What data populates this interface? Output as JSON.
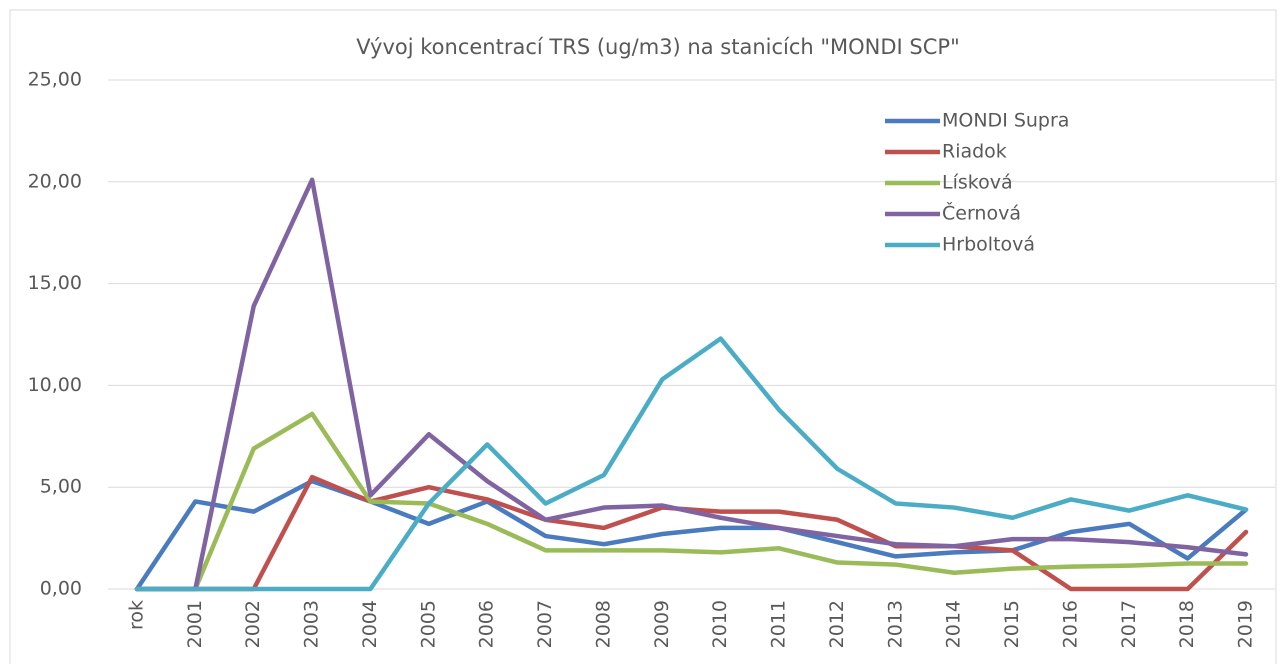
{
  "chart_data": {
    "type": "line",
    "title": "Vývoj koncentrací TRS (ug/m3) na stanicích \"MONDI SCP\"",
    "categories": [
      "rok",
      "2001",
      "2002",
      "2003",
      "2004",
      "2005",
      "2006",
      "2007",
      "2008",
      "2009",
      "2010",
      "2011",
      "2012",
      "2013",
      "2014",
      "2015",
      "2016",
      "2017",
      "2018",
      "2019"
    ],
    "series": [
      {
        "name": "MONDI Supra",
        "color": "#4a7bbf",
        "values": [
          0,
          4.3,
          3.8,
          5.3,
          4.3,
          3.2,
          4.3,
          2.6,
          2.2,
          2.7,
          3.0,
          3.0,
          2.3,
          1.6,
          1.8,
          1.9,
          2.8,
          3.2,
          1.5,
          3.9
        ]
      },
      {
        "name": "Riadok",
        "color": "#c0504d",
        "values": [
          0,
          0,
          0,
          5.5,
          4.3,
          5.0,
          4.4,
          3.4,
          3.0,
          4.0,
          3.8,
          3.8,
          3.4,
          2.1,
          2.1,
          1.9,
          0,
          0,
          0,
          2.8
        ]
      },
      {
        "name": "Lísková",
        "color": "#9bbb59",
        "values": [
          0,
          0,
          6.9,
          8.6,
          4.3,
          4.2,
          3.2,
          1.9,
          1.9,
          1.9,
          1.8,
          2.0,
          1.3,
          1.2,
          0.8,
          1.0,
          1.1,
          1.15,
          1.25,
          1.25
        ]
      },
      {
        "name": "Černová",
        "color": "#8064a2",
        "values": [
          0,
          0,
          13.9,
          20.1,
          4.6,
          7.6,
          5.3,
          3.4,
          4.0,
          4.1,
          3.5,
          3.0,
          2.6,
          2.2,
          2.1,
          2.45,
          2.45,
          2.3,
          2.05,
          1.7
        ]
      },
      {
        "name": "Hrboltová",
        "color": "#4bacc6",
        "values": [
          0,
          0,
          0,
          0,
          0,
          4.2,
          7.1,
          4.2,
          5.6,
          10.3,
          12.3,
          8.8,
          5.9,
          4.2,
          4.0,
          3.5,
          4.4,
          3.85,
          4.6,
          3.9
        ]
      }
    ],
    "ylim": [
      0,
      25
    ],
    "yticks": [
      {
        "value": 0,
        "label": "0,00"
      },
      {
        "value": 5,
        "label": "5,00"
      },
      {
        "value": 10,
        "label": "10,00"
      },
      {
        "value": 15,
        "label": "15,00"
      },
      {
        "value": 20,
        "label": "20,00"
      },
      {
        "value": 25,
        "label": "25,00"
      }
    ],
    "grid": true,
    "legend": "upper right"
  }
}
